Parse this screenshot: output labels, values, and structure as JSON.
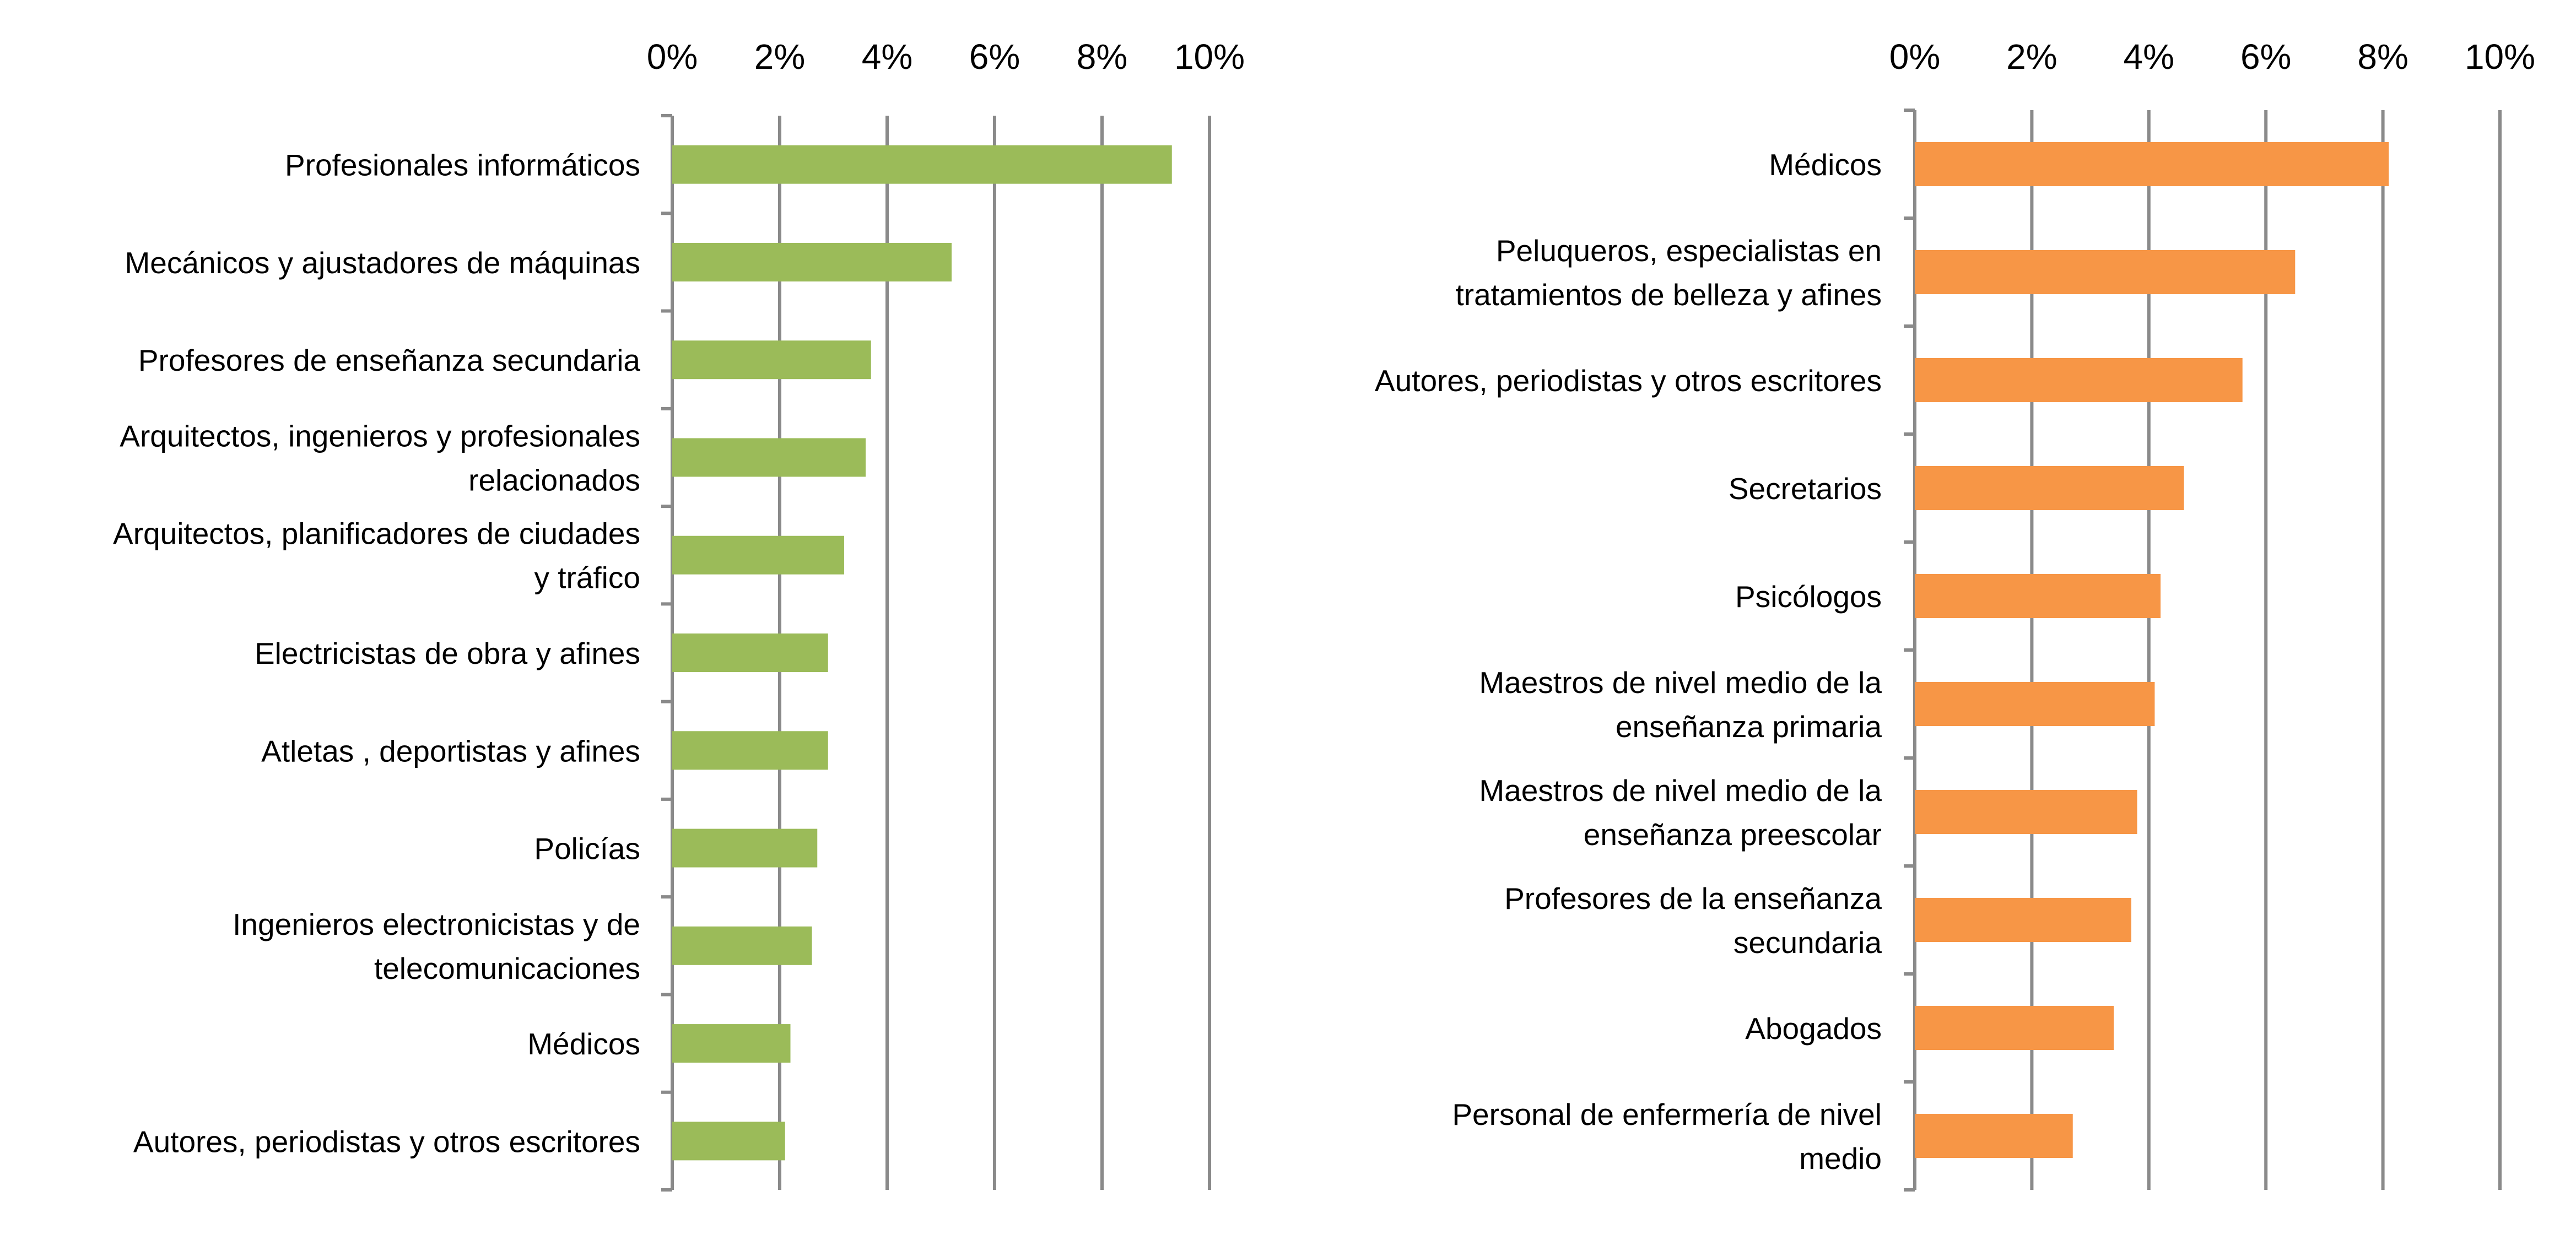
{
  "chart_data": [
    {
      "type": "bar",
      "orientation": "horizontal",
      "color": "#9BBB59",
      "xlim": [
        0,
        10
      ],
      "x_ticks": [
        "0%",
        "2%",
        "4%",
        "6%",
        "8%",
        "10%"
      ],
      "grid": true,
      "categories": [
        [
          "Profesionales informáticos"
        ],
        [
          "Mecánicos y ajustadores de máquinas"
        ],
        [
          "Profesores de enseñanza  secundaria"
        ],
        [
          "Arquitectos, ingenieros y profesionales",
          "relacionados"
        ],
        [
          "Arquitectos, planificadores de ciudades",
          "y tráfico"
        ],
        [
          "Electricistas de obra y afines"
        ],
        [
          "Atletas , deportistas y afines"
        ],
        [
          "Policías"
        ],
        [
          "Ingenieros electronicistas y de",
          "telecomunicaciones"
        ],
        [
          "Médicos"
        ],
        [
          "Autores, periodistas y otros escritores"
        ]
      ],
      "values": [
        9.3,
        5.2,
        3.7,
        3.6,
        3.2,
        2.9,
        2.9,
        2.7,
        2.6,
        2.2,
        2.1
      ]
    },
    {
      "type": "bar",
      "orientation": "horizontal",
      "color": "#F79646",
      "xlim": [
        0,
        10
      ],
      "x_ticks": [
        "0%",
        "2%",
        "4%",
        "6%",
        "8%",
        "10%"
      ],
      "grid": true,
      "categories": [
        [
          "Médicos"
        ],
        [
          "Peluqueros, especialistas en",
          "tratamientos de belleza y afines"
        ],
        [
          "Autores, periodistas y otros escritores"
        ],
        [
          "Secretarios"
        ],
        [
          "Psicólogos"
        ],
        [
          "Maestros de nivel medio de la",
          "enseñanza primaria"
        ],
        [
          "Maestros de nivel medio de la",
          "enseñanza preescolar"
        ],
        [
          "Profesores de la enseñanza",
          "secundaria"
        ],
        [
          "Abogados"
        ],
        [
          "Personal de enfermería de nivel",
          "medio"
        ]
      ],
      "values": [
        8.1,
        6.5,
        5.6,
        4.6,
        4.2,
        4.1,
        3.8,
        3.7,
        3.4,
        2.7
      ]
    }
  ]
}
